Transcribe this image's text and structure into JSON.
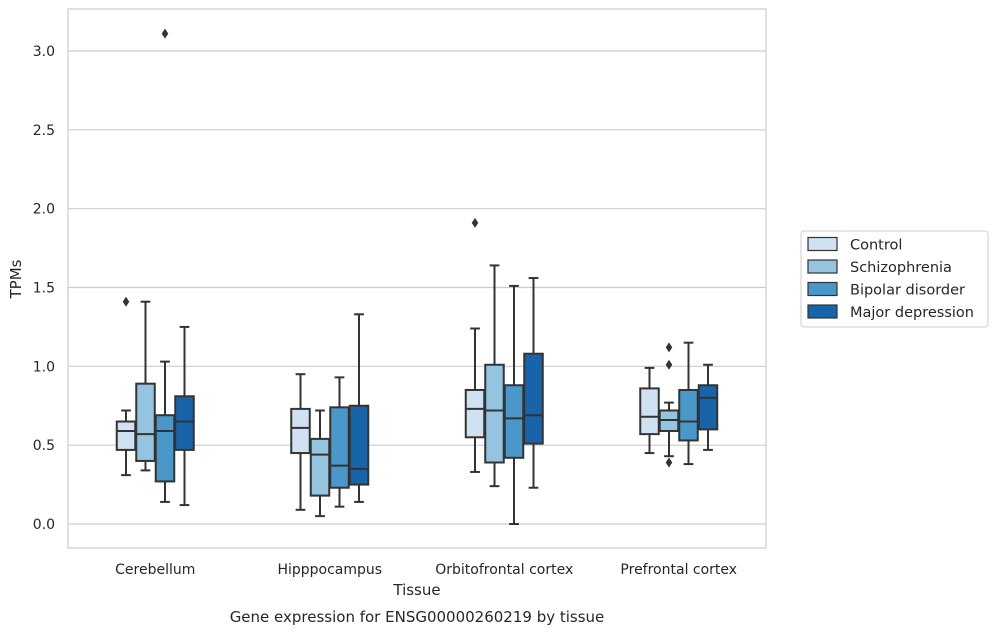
{
  "chart_data": {
    "type": "box",
    "xlabel": "Tissue",
    "ylabel": "TPMs",
    "caption": "Gene expression for ENSG00000260219 by tissue",
    "ylim": [
      -0.15,
      3.27
    ],
    "yticks": [
      0.0,
      0.5,
      1.0,
      1.5,
      2.0,
      2.5,
      3.0
    ],
    "ytick_labels": [
      "0.0",
      "0.5",
      "1.0",
      "1.5",
      "2.0",
      "2.5",
      "3.0"
    ],
    "grid": "horizontal",
    "legend_position": "right",
    "categories": [
      "Cerebellum",
      "Hipppocampus",
      "Orbitofrontal cortex",
      "Prefrontal cortex"
    ],
    "series": [
      {
        "name": "Control",
        "color": "#d0e1f2",
        "boxes": [
          {
            "whislo": 0.31,
            "q1": 0.47,
            "med": 0.59,
            "q3": 0.65,
            "whishi": 0.72,
            "fliers": [
              1.41
            ]
          },
          {
            "whislo": 0.09,
            "q1": 0.45,
            "med": 0.61,
            "q3": 0.73,
            "whishi": 0.95,
            "fliers": []
          },
          {
            "whislo": 0.33,
            "q1": 0.55,
            "med": 0.73,
            "q3": 0.85,
            "whishi": 1.24,
            "fliers": [
              1.91
            ]
          },
          {
            "whislo": 0.45,
            "q1": 0.57,
            "med": 0.68,
            "q3": 0.86,
            "whishi": 0.99,
            "fliers": []
          }
        ]
      },
      {
        "name": "Schizophrenia",
        "color": "#94c4df",
        "boxes": [
          {
            "whislo": 0.34,
            "q1": 0.4,
            "med": 0.57,
            "q3": 0.89,
            "whishi": 1.41,
            "fliers": []
          },
          {
            "whislo": 0.05,
            "q1": 0.18,
            "med": 0.44,
            "q3": 0.54,
            "whishi": 0.72,
            "fliers": []
          },
          {
            "whislo": 0.24,
            "q1": 0.39,
            "med": 0.72,
            "q3": 1.01,
            "whishi": 1.64,
            "fliers": []
          },
          {
            "whislo": 0.43,
            "q1": 0.59,
            "med": 0.66,
            "q3": 0.72,
            "whishi": 0.77,
            "fliers": [
              1.12,
              1.01,
              0.39
            ]
          }
        ]
      },
      {
        "name": "Bipolar disorder",
        "color": "#4a98c9",
        "boxes": [
          {
            "whislo": 0.14,
            "q1": 0.27,
            "med": 0.59,
            "q3": 0.69,
            "whishi": 1.03,
            "fliers": [
              3.11
            ]
          },
          {
            "whislo": 0.11,
            "q1": 0.23,
            "med": 0.37,
            "q3": 0.74,
            "whishi": 0.93,
            "fliers": []
          },
          {
            "whislo": 0.0,
            "q1": 0.42,
            "med": 0.67,
            "q3": 0.88,
            "whishi": 1.51,
            "fliers": []
          },
          {
            "whislo": 0.38,
            "q1": 0.53,
            "med": 0.65,
            "q3": 0.85,
            "whishi": 1.15,
            "fliers": []
          }
        ]
      },
      {
        "name": "Major depression",
        "color": "#1764ab",
        "boxes": [
          {
            "whislo": 0.12,
            "q1": 0.47,
            "med": 0.65,
            "q3": 0.81,
            "whishi": 1.25,
            "fliers": []
          },
          {
            "whislo": 0.14,
            "q1": 0.25,
            "med": 0.35,
            "q3": 0.75,
            "whishi": 1.33,
            "fliers": []
          },
          {
            "whislo": 0.23,
            "q1": 0.51,
            "med": 0.69,
            "q3": 1.08,
            "whishi": 1.56,
            "fliers": []
          },
          {
            "whislo": 0.47,
            "q1": 0.6,
            "med": 0.8,
            "q3": 0.88,
            "whishi": 1.01,
            "fliers": []
          }
        ]
      }
    ]
  }
}
